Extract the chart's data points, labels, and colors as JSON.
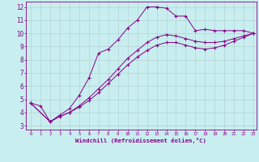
{
  "xlabel": "Windchill (Refroidissement éolien,°C)",
  "bg_color": "#c8eef0",
  "line_color": "#880088",
  "grid_color": "#b0cccc",
  "xlim_min": -0.5,
  "xlim_max": 23.3,
  "ylim_min": 2.7,
  "ylim_max": 12.4,
  "xticks": [
    0,
    1,
    2,
    3,
    4,
    5,
    6,
    7,
    8,
    9,
    10,
    11,
    12,
    13,
    14,
    15,
    16,
    17,
    18,
    19,
    20,
    21,
    22,
    23
  ],
  "yticks": [
    3,
    4,
    5,
    6,
    7,
    8,
    9,
    10,
    11,
    12
  ],
  "line1_x": [
    0,
    1,
    2,
    3,
    4,
    5,
    6,
    7,
    8,
    9,
    10,
    11,
    12,
    13,
    14,
    15,
    16,
    17,
    18,
    19,
    20,
    21,
    22,
    23
  ],
  "line1_y": [
    4.7,
    4.5,
    3.3,
    3.8,
    4.3,
    5.3,
    6.6,
    8.5,
    8.8,
    9.5,
    10.4,
    11.0,
    12.0,
    12.0,
    11.9,
    11.3,
    11.3,
    10.2,
    10.3,
    10.2,
    10.2,
    10.2,
    10.2,
    10.0
  ],
  "line2_x": [
    0,
    2,
    3,
    4,
    5,
    6,
    7,
    8,
    9,
    10,
    11,
    12,
    13,
    14,
    15,
    16,
    17,
    18,
    19,
    20,
    21,
    22,
    23
  ],
  "line2_y": [
    4.7,
    3.3,
    3.7,
    4.0,
    4.5,
    5.1,
    5.8,
    6.5,
    7.3,
    8.1,
    8.7,
    9.3,
    9.7,
    9.9,
    9.8,
    9.6,
    9.4,
    9.3,
    9.3,
    9.4,
    9.6,
    9.8,
    10.0
  ],
  "line3_x": [
    0,
    2,
    3,
    4,
    5,
    6,
    7,
    8,
    9,
    10,
    11,
    12,
    13,
    14,
    15,
    16,
    17,
    18,
    19,
    20,
    21,
    22,
    23
  ],
  "line3_y": [
    4.7,
    3.3,
    3.7,
    4.0,
    4.4,
    4.9,
    5.5,
    6.2,
    6.9,
    7.6,
    8.2,
    8.7,
    9.1,
    9.3,
    9.3,
    9.1,
    8.9,
    8.8,
    8.9,
    9.1,
    9.4,
    9.7,
    10.0
  ]
}
